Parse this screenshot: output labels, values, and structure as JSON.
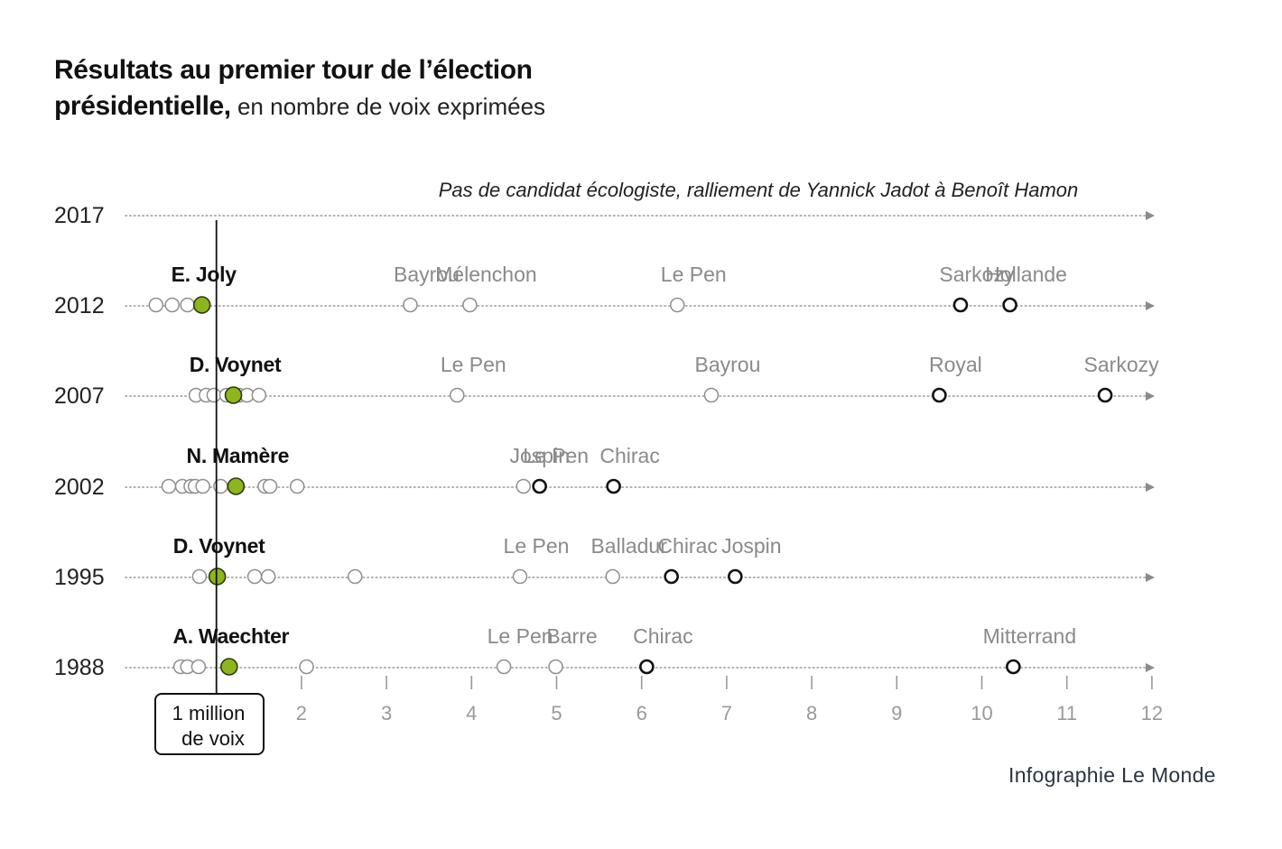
{
  "title": {
    "line1": "Résultats au premier tour de l’élection",
    "line2_bold": "présidentielle,",
    "line2_rest": " en nombre de voix exprimées"
  },
  "credit": "Infographie Le Monde",
  "colors": {
    "ecologist": "#8db51e",
    "major": "#111111",
    "minor": "#ffffff",
    "label_minor": "#8a8a8a",
    "label_ecologist": "#111111",
    "dotted_line": "#9a9a9a"
  },
  "chart_data": {
    "type": "scatter",
    "x_unit": "millions de voix",
    "xlim": [
      0,
      12
    ],
    "x_ticks": [
      {
        "value": 2,
        "label": "2"
      },
      {
        "value": 3,
        "label": "3"
      },
      {
        "value": 4,
        "label": "4"
      },
      {
        "value": 5,
        "label": "5"
      },
      {
        "value": 6,
        "label": "6"
      },
      {
        "value": 7,
        "label": "7"
      },
      {
        "value": 8,
        "label": "8"
      },
      {
        "value": 9,
        "label": "9"
      },
      {
        "value": 10,
        "label": "10"
      },
      {
        "value": 11,
        "label": "11"
      },
      {
        "value": 12,
        "label": "12"
      }
    ],
    "reference": {
      "value": 1,
      "label_line1": "1 million",
      "label_line2": "de voix"
    },
    "rows": [
      {
        "year": "2017",
        "note": "Pas de candidat écologiste, ralliement de Yannick Jadot à Benoît Hamon",
        "candidates": []
      },
      {
        "year": "2012",
        "candidates": [
          {
            "name": "",
            "value": 0.29,
            "kind": "minor"
          },
          {
            "name": "",
            "value": 0.48,
            "kind": "minor"
          },
          {
            "name": "",
            "value": 0.66,
            "kind": "minor"
          },
          {
            "name": "E. Joly",
            "value": 0.83,
            "kind": "ecologist"
          },
          {
            "name": "Bayrou",
            "value": 3.28,
            "kind": "minor"
          },
          {
            "name": "Mélenchon",
            "value": 3.98,
            "kind": "minor"
          },
          {
            "name": "Le Pen",
            "value": 6.42,
            "kind": "minor"
          },
          {
            "name": "Sarkozy",
            "value": 9.75,
            "kind": "major"
          },
          {
            "name": "Hollande",
            "value": 10.33,
            "kind": "major"
          }
        ]
      },
      {
        "year": "2007",
        "candidates": [
          {
            "name": "",
            "value": 0.76,
            "kind": "minor"
          },
          {
            "name": "",
            "value": 0.88,
            "kind": "minor"
          },
          {
            "name": "",
            "value": 0.97,
            "kind": "minor"
          },
          {
            "name": "",
            "value": 1.12,
            "kind": "minor"
          },
          {
            "name": "",
            "value": 1.27,
            "kind": "minor"
          },
          {
            "name": "",
            "value": 1.36,
            "kind": "minor"
          },
          {
            "name": "",
            "value": 1.5,
            "kind": "minor"
          },
          {
            "name": "D. Voynet",
            "value": 1.2,
            "kind": "ecologist"
          },
          {
            "name": "Le Pen",
            "value": 3.83,
            "kind": "minor"
          },
          {
            "name": "Bayrou",
            "value": 6.82,
            "kind": "minor"
          },
          {
            "name": "Royal",
            "value": 9.5,
            "kind": "major"
          },
          {
            "name": "Sarkozy",
            "value": 11.45,
            "kind": "major"
          }
        ]
      },
      {
        "year": "2002",
        "candidates": [
          {
            "name": "",
            "value": 0.44,
            "kind": "minor"
          },
          {
            "name": "",
            "value": 0.6,
            "kind": "minor"
          },
          {
            "name": "",
            "value": 0.7,
            "kind": "minor"
          },
          {
            "name": "",
            "value": 0.75,
            "kind": "minor"
          },
          {
            "name": "",
            "value": 0.84,
            "kind": "minor"
          },
          {
            "name": "",
            "value": 1.05,
            "kind": "minor"
          },
          {
            "name": "",
            "value": 1.57,
            "kind": "minor"
          },
          {
            "name": "",
            "value": 1.63,
            "kind": "minor"
          },
          {
            "name": "",
            "value": 1.95,
            "kind": "minor"
          },
          {
            "name": "N. Mamère",
            "value": 1.23,
            "kind": "ecologist"
          },
          {
            "name": "Jospin",
            "value": 4.61,
            "kind": "minor"
          },
          {
            "name": "Le Pen",
            "value": 4.8,
            "kind": "major"
          },
          {
            "name": "Chirac",
            "value": 5.67,
            "kind": "major"
          }
        ]
      },
      {
        "year": "1995",
        "candidates": [
          {
            "name": "",
            "value": 0.8,
            "kind": "minor"
          },
          {
            "name": "",
            "value": 1.45,
            "kind": "minor"
          },
          {
            "name": "",
            "value": 1.61,
            "kind": "minor"
          },
          {
            "name": "",
            "value": 2.63,
            "kind": "minor"
          },
          {
            "name": "D. Voynet",
            "value": 1.01,
            "kind": "ecologist"
          },
          {
            "name": "Le Pen",
            "value": 4.57,
            "kind": "minor"
          },
          {
            "name": "Balladur",
            "value": 5.66,
            "kind": "minor"
          },
          {
            "name": "Chirac",
            "value": 6.35,
            "kind": "major"
          },
          {
            "name": "Jospin",
            "value": 7.1,
            "kind": "major"
          }
        ]
      },
      {
        "year": "1988",
        "candidates": [
          {
            "name": "",
            "value": 0.58,
            "kind": "minor"
          },
          {
            "name": "",
            "value": 0.66,
            "kind": "minor"
          },
          {
            "name": "",
            "value": 0.79,
            "kind": "minor"
          },
          {
            "name": "",
            "value": 2.06,
            "kind": "minor"
          },
          {
            "name": "A. Waechter",
            "value": 1.15,
            "kind": "ecologist"
          },
          {
            "name": "Le Pen",
            "value": 4.38,
            "kind": "minor"
          },
          {
            "name": "Barre",
            "value": 4.99,
            "kind": "minor"
          },
          {
            "name": "Chirac",
            "value": 6.06,
            "kind": "major"
          },
          {
            "name": "Mitterrand",
            "value": 10.37,
            "kind": "major"
          }
        ]
      }
    ]
  }
}
